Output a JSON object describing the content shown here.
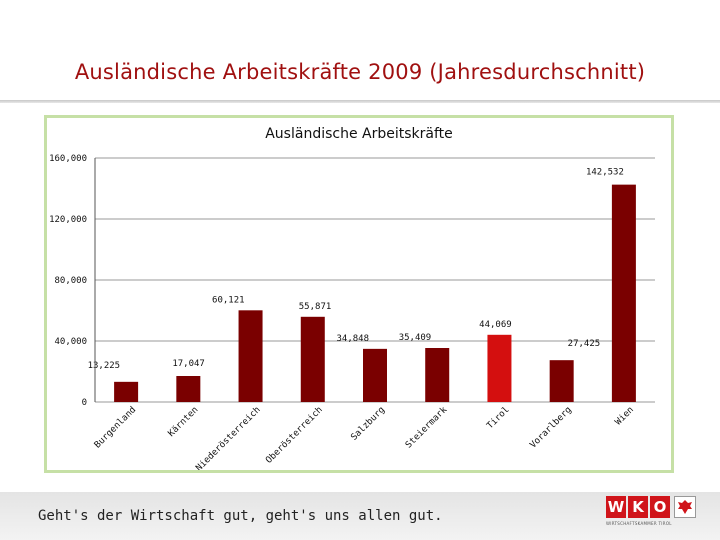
{
  "slide": {
    "title": "Ausländische Arbeitskräfte 2009 (Jahresdurchschnitt)",
    "footer_slogan": "Geht's der Wirtschaft gut, geht's uns allen gut.",
    "logo_letters": [
      "W",
      "K",
      "O"
    ],
    "logo_subtitle": "WIRTSCHAFTSKAMMER TIROL"
  },
  "colors": {
    "title": "#a01010",
    "bar": "#7a0000",
    "highlight_bar": "#d40f0f",
    "frame": "#c6e0a6"
  },
  "chart_data": {
    "type": "bar",
    "title": "Ausländische Arbeitskräfte",
    "categories": [
      "Burgenland",
      "Kärnten",
      "Niederösterreich",
      "Oberösterreich",
      "Salzburg",
      "Steiermark",
      "Tirol",
      "Vorarlberg",
      "Wien"
    ],
    "values": [
      13225,
      17047,
      60121,
      55871,
      34848,
      35409,
      44069,
      27425,
      142532
    ],
    "value_labels": [
      "13,225",
      "17,047",
      "60,121",
      "55,871",
      "34,848",
      "35,409",
      "44,069",
      "27,425",
      "142,532"
    ],
    "highlight_index": 6,
    "y_ticks": [
      0,
      40000,
      80000,
      120000,
      160000
    ],
    "y_tick_labels": [
      "0",
      "40,000",
      "80,000",
      "120,000",
      "160,000"
    ],
    "ylim": [
      0,
      160000
    ],
    "grid": true,
    "legend": "none"
  }
}
